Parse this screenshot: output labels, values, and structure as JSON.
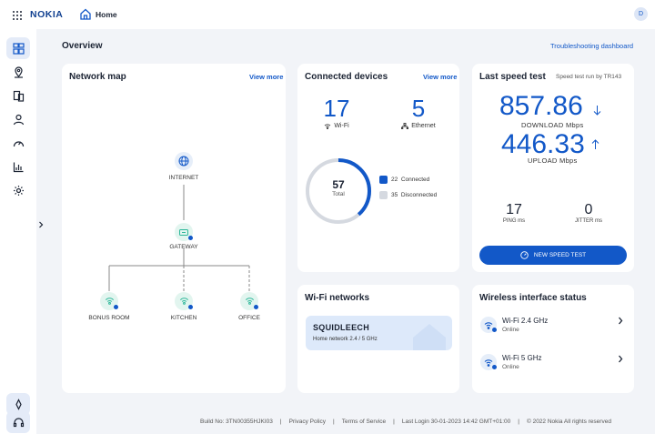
{
  "header": {
    "brand": "NOKIA",
    "page_title": "Home",
    "user_initial": "D"
  },
  "page": {
    "title": "Overview",
    "troubleshoot_link": "Troubleshooting dashboard"
  },
  "sidebar": {
    "items": [
      "dashboard-icon",
      "location-icon",
      "devices-icon",
      "user-icon",
      "speed-icon",
      "analytics-icon",
      "settings-icon"
    ]
  },
  "network_map": {
    "title": "Network map",
    "view_more": "View more",
    "internet": "INTERNET",
    "gateway": "GATEWAY",
    "nodes": [
      "BONUS ROOM",
      "KITCHEN",
      "OFFICE"
    ]
  },
  "connected_devices": {
    "title": "Connected devices",
    "view_more": "View more",
    "wifi_count": "17",
    "wifi_label": "Wi-Fi",
    "ethernet_count": "5",
    "ethernet_label": "Ethernet",
    "total": "57",
    "total_label": "Total",
    "connected_fraction": 0.386,
    "connected_label": "22  Connected",
    "disconnected_label": "35  Disconnected",
    "connected_color": "#1258c8",
    "disconnected_color": "#d5d9e0"
  },
  "speed_test": {
    "title": "Last speed test",
    "run_by": "Speed test run by TR143",
    "download": "857.86",
    "download_unit": "DOWNLOAD Mbps",
    "upload": "446.33",
    "upload_unit": "UPLOAD Mbps",
    "ping": "17",
    "ping_unit": "PING ms",
    "jitter": "0",
    "jitter_unit": "JITTER ms",
    "button": "NEW SPEED TEST"
  },
  "wifi_networks": {
    "title": "Wi-Fi networks",
    "ssid": "SQUIDLEECH",
    "subtitle": "Home network 2.4 / 5 GHz"
  },
  "wireless_status": {
    "title": "Wireless interface status",
    "items": [
      {
        "name": "Wi-Fi 2.4 GHz",
        "status": "Online"
      },
      {
        "name": "Wi-Fi 5 GHz",
        "status": "Online"
      }
    ]
  },
  "footer": {
    "build": "Build No: 3TN00355HJKI03",
    "privacy": "Privacy Policy",
    "terms": "Terms of Service",
    "last_login": "Last Login 30-01-2023 14:42 GMT+01:00",
    "copyright": "© 2022 Nokia All rights reserved"
  },
  "colors": {
    "accent": "#1258c8",
    "teal": "#2fb89a",
    "status_dot": "#1258c8"
  }
}
